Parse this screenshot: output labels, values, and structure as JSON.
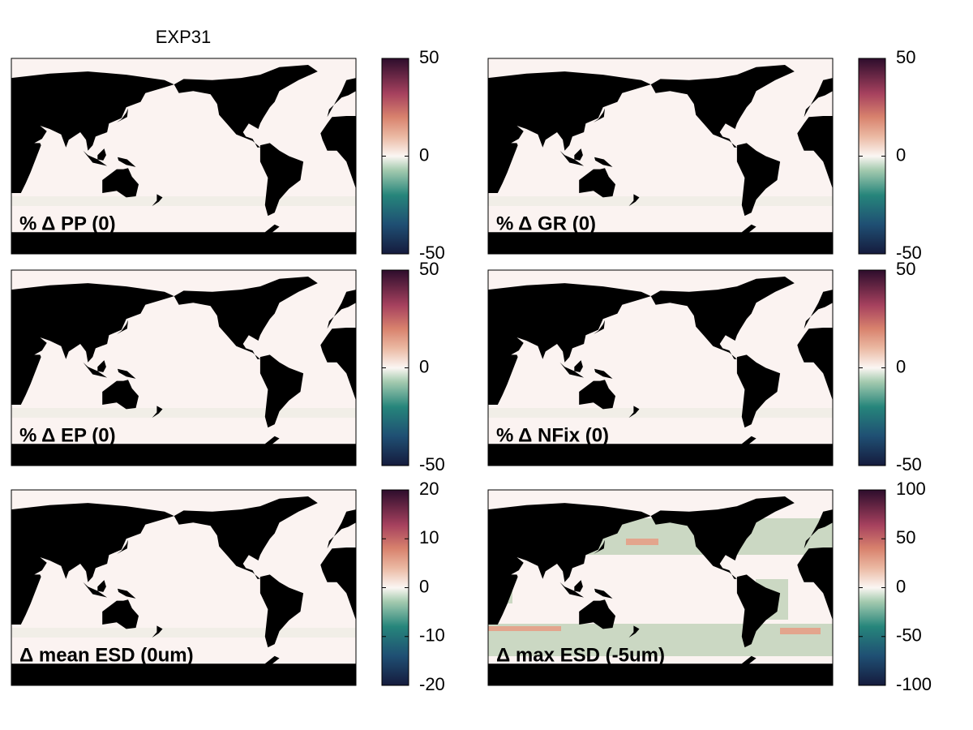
{
  "title": "EXP31",
  "chart_data": [
    {
      "type": "map",
      "title": "% Δ PP (0)",
      "clim": [
        -50,
        50
      ],
      "cticks": [
        -50,
        0,
        50
      ]
    },
    {
      "type": "map",
      "title": "% Δ GR (0)",
      "clim": [
        -50,
        50
      ],
      "cticks": [
        -50,
        0,
        50
      ]
    },
    {
      "type": "map",
      "title": "% Δ EP (0)",
      "clim": [
        -50,
        50
      ],
      "cticks": [
        -50,
        0,
        50
      ]
    },
    {
      "type": "map",
      "title": "% Δ NFix (0)",
      "clim": [
        -50,
        50
      ],
      "cticks": [
        -50,
        0,
        50
      ]
    },
    {
      "type": "map",
      "title": "Δ mean ESD (0um)",
      "clim": [
        -20,
        20
      ],
      "cticks": [
        -20,
        -10,
        0,
        10,
        20
      ]
    },
    {
      "type": "map",
      "title": "Δ max ESD (-5um)",
      "clim": [
        -100,
        100
      ],
      "cticks": [
        -100,
        -50,
        0,
        50,
        100
      ]
    }
  ]
}
